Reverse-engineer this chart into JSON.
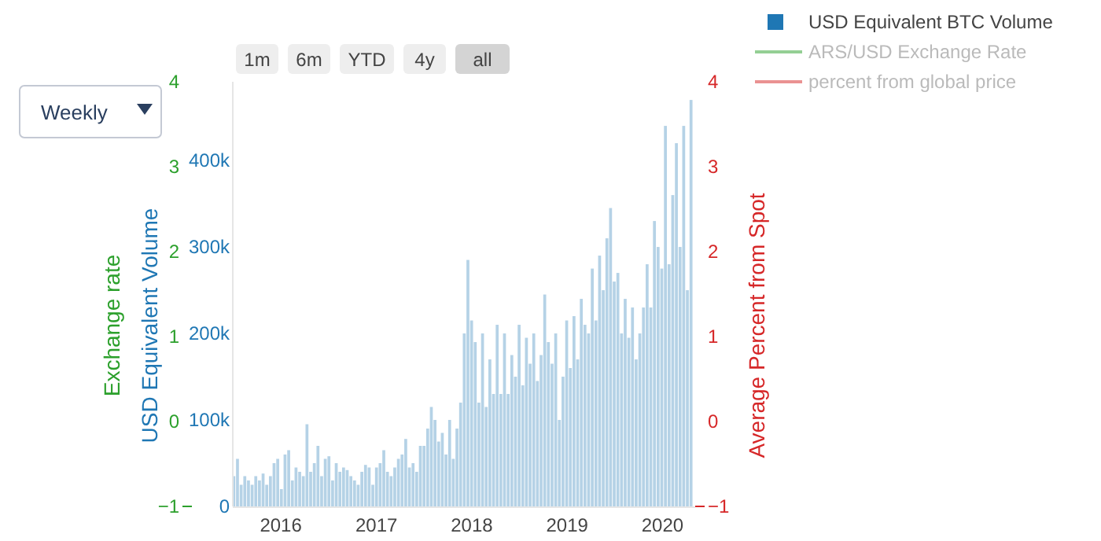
{
  "chart_data": {
    "type": "bar",
    "xlabel": null,
    "ylabel": "USD Equivalent Volume",
    "y2label": "Average Percent from Spot",
    "y3label": "Exchange rate",
    "annotations": [
      "1m",
      "6m",
      "YTD",
      "4y",
      "all",
      "Weekly"
    ],
    "x": [
      "2015-07-05",
      "2015-07-19",
      "2015-08-02",
      "2015-08-16",
      "2015-08-30",
      "2015-09-13",
      "2015-09-27",
      "2015-10-11",
      "2015-10-25",
      "2015-11-08",
      "2015-11-22",
      "2015-12-06",
      "2015-12-20",
      "2016-01-03",
      "2016-01-17",
      "2016-01-31",
      "2016-02-14",
      "2016-02-28",
      "2016-03-13",
      "2016-03-27",
      "2016-04-10",
      "2016-04-24",
      "2016-05-08",
      "2016-05-22",
      "2016-06-05",
      "2016-06-19",
      "2016-07-03",
      "2016-07-17",
      "2016-07-31",
      "2016-08-14",
      "2016-08-28",
      "2016-09-11",
      "2016-09-25",
      "2016-10-09",
      "2016-10-23",
      "2016-11-06",
      "2016-11-20",
      "2016-12-04",
      "2016-12-18",
      "2017-01-01",
      "2017-01-15",
      "2017-01-29",
      "2017-02-12",
      "2017-02-26",
      "2017-03-12",
      "2017-03-26",
      "2017-04-09",
      "2017-04-23",
      "2017-05-07",
      "2017-05-21",
      "2017-06-04",
      "2017-06-18",
      "2017-07-02",
      "2017-07-16",
      "2017-07-30",
      "2017-08-13",
      "2017-08-27",
      "2017-09-10",
      "2017-09-24",
      "2017-10-08",
      "2017-10-22",
      "2017-11-05",
      "2017-11-19",
      "2017-12-03",
      "2017-12-17",
      "2017-12-31",
      "2018-01-14",
      "2018-01-28",
      "2018-02-11",
      "2018-02-25",
      "2018-03-11",
      "2018-03-25",
      "2018-04-08",
      "2018-04-22",
      "2018-05-06",
      "2018-05-20",
      "2018-06-03",
      "2018-06-17",
      "2018-07-01",
      "2018-07-15",
      "2018-07-29",
      "2018-08-12",
      "2018-08-26",
      "2018-09-09",
      "2018-09-23",
      "2018-10-07",
      "2018-10-21",
      "2018-11-04",
      "2018-11-18",
      "2018-12-02",
      "2018-12-16",
      "2018-12-30",
      "2019-01-13",
      "2019-01-27",
      "2019-02-10",
      "2019-02-24",
      "2019-03-10",
      "2019-03-24",
      "2019-04-07",
      "2019-04-21",
      "2019-05-05",
      "2019-05-19",
      "2019-06-02",
      "2019-06-16",
      "2019-06-30",
      "2019-07-14",
      "2019-07-28",
      "2019-08-11",
      "2019-08-25",
      "2019-09-08",
      "2019-09-22",
      "2019-10-06",
      "2019-10-20",
      "2019-11-03",
      "2019-11-17",
      "2019-12-01",
      "2019-12-15",
      "2019-12-29",
      "2020-01-12",
      "2020-01-26",
      "2020-02-09",
      "2020-02-23",
      "2020-03-08",
      "2020-03-22",
      "2020-04-05",
      "2020-04-19"
    ],
    "xlim": [
      "2015-07-01",
      "2020-05-05"
    ],
    "xticks": [
      "2016",
      "2017",
      "2018",
      "2019",
      "2020"
    ],
    "ylim": [
      0,
      491000
    ],
    "yticks": [
      0,
      {
        "value": 100000,
        "label": "100k"
      },
      {
        "value": 200000,
        "label": "200k"
      },
      {
        "value": 300000,
        "label": "300k"
      },
      {
        "value": 400000,
        "label": "400k"
      }
    ],
    "y2lim": [
      -1,
      4
    ],
    "y2ticks": [
      -1,
      0,
      1,
      2,
      3,
      4
    ],
    "y3lim": [
      -1,
      4
    ],
    "y3ticks": [
      -1,
      0,
      1,
      2,
      3,
      4
    ],
    "legend": "top right",
    "grid": false,
    "series": [
      {
        "name": "USD Equivalent BTC Volume",
        "color": "#1f77b4",
        "axis": "y",
        "values": [
          35000,
          55000,
          25000,
          35000,
          30000,
          25000,
          35000,
          30000,
          38000,
          25000,
          35000,
          50000,
          55000,
          20000,
          60000,
          65000,
          30000,
          45000,
          40000,
          35000,
          95000,
          40000,
          50000,
          70000,
          35000,
          55000,
          58000,
          30000,
          50000,
          40000,
          45000,
          42000,
          35000,
          30000,
          25000,
          40000,
          48000,
          45000,
          25000,
          45000,
          50000,
          65000,
          40000,
          35000,
          45000,
          55000,
          60000,
          78000,
          45000,
          50000,
          40000,
          70000,
          70000,
          90000,
          115000,
          100000,
          75000,
          85000,
          60000,
          100000,
          55000,
          90000,
          120000,
          200000,
          285000,
          215000,
          190000,
          120000,
          200000,
          115000,
          170000,
          130000,
          210000,
          130000,
          200000,
          130000,
          175000,
          150000,
          210000,
          140000,
          195000,
          165000,
          200000,
          145000,
          175000,
          245000,
          190000,
          165000,
          200000,
          100000,
          150000,
          215000,
          160000,
          220000,
          170000,
          240000,
          210000,
          200000,
          275000,
          215000,
          290000,
          250000,
          310000,
          345000,
          260000,
          270000,
          200000,
          240000,
          195000,
          230000,
          170000,
          200000,
          230000,
          280000,
          230000,
          330000,
          300000,
          275000,
          440000,
          280000,
          360000,
          420000,
          300000,
          440000,
          250000,
          470000
        ]
      },
      {
        "name": "ARS/USD Exchange Rate",
        "type": "line",
        "color": "#2ca02c",
        "axis": "y3",
        "values": [
          null,
          null,
          null,
          null,
          null,
          null,
          null,
          null,
          null,
          null,
          null,
          null,
          null,
          null,
          null,
          null,
          null,
          null,
          null,
          null,
          null,
          null,
          null,
          null,
          null,
          null,
          null,
          null,
          null,
          null,
          null,
          null,
          null,
          null,
          null,
          null,
          null,
          null,
          null,
          null,
          null,
          null,
          null,
          null,
          null,
          null,
          null,
          null,
          null,
          null,
          null,
          null,
          null,
          null,
          null,
          null,
          null,
          null,
          null,
          null,
          null,
          null,
          null,
          null,
          null,
          null,
          null,
          null,
          null,
          null,
          null,
          null,
          null,
          null,
          null,
          null,
          null,
          null,
          null,
          null,
          null,
          null,
          null,
          null,
          null,
          null,
          null,
          null,
          null,
          null,
          null,
          null,
          null,
          null,
          null,
          null,
          null,
          null,
          null,
          null,
          null,
          null,
          null,
          null,
          null,
          null,
          null,
          null,
          null,
          null,
          null,
          null,
          null,
          null,
          null,
          null,
          null,
          null,
          null,
          null,
          null,
          null,
          null,
          null,
          null,
          null
        ]
      },
      {
        "name": "percent from global price",
        "type": "line",
        "color": "#d62728",
        "axis": "y2",
        "values": [
          null,
          null,
          null,
          null,
          null,
          null,
          null,
          null,
          null,
          null,
          null,
          null,
          null,
          null,
          null,
          null,
          null,
          null,
          null,
          null,
          null,
          null,
          null,
          null,
          null,
          null,
          null,
          null,
          null,
          null,
          null,
          null,
          null,
          null,
          null,
          null,
          null,
          null,
          null,
          null,
          null,
          null,
          null,
          null,
          null,
          null,
          null,
          null,
          null,
          null,
          null,
          null,
          null,
          null,
          null,
          null,
          null,
          null,
          null,
          null,
          null,
          null,
          null,
          null,
          null,
          null,
          null,
          null,
          null,
          null,
          null,
          null,
          null,
          null,
          null,
          null,
          null,
          null,
          null,
          null,
          null,
          null,
          null,
          null,
          null,
          null,
          null,
          null,
          null,
          null,
          null,
          null,
          null,
          null,
          null,
          null,
          null,
          null,
          null,
          null,
          null,
          null,
          null,
          null,
          null,
          null,
          null,
          null,
          null,
          null,
          null,
          null,
          null,
          null,
          null,
          null,
          null,
          null,
          null,
          null,
          null,
          null,
          null,
          null,
          null,
          null
        ]
      }
    ]
  }
}
